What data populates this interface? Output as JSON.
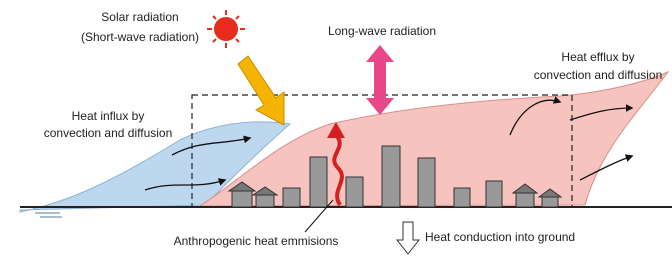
{
  "labels": {
    "solar": [
      "Solar radiation",
      "(Short-wave radiation)"
    ],
    "longwave": "Long-wave radiation",
    "efflux": [
      "Heat efflux by",
      "convection and diffusion"
    ],
    "influx": [
      "Heat influx by",
      "convection and diffusion"
    ],
    "anthropogenic": "Anthropogenic heat emmisions",
    "ground": "Heat conduction into ground"
  }
}
